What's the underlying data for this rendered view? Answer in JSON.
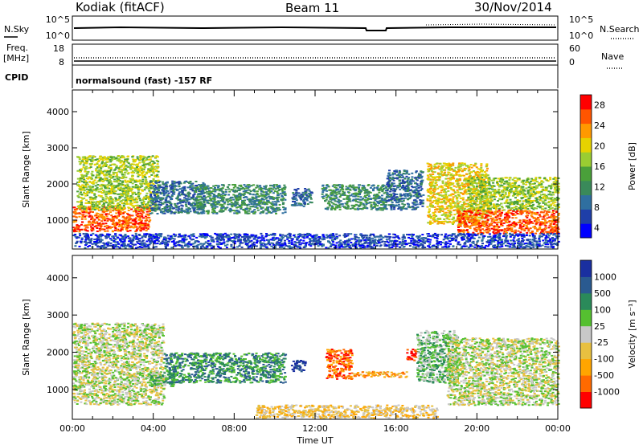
{
  "header": {
    "station": "Kodiak (fitACF)",
    "beam": "Beam 11",
    "date": "30/Nov/2014"
  },
  "top_panels": {
    "nsky_label": "N.Sky",
    "nsky_ticks": [
      "10^5",
      "10^0"
    ],
    "nsearch_label": "N.Search",
    "nsearch_ticks": [
      "10^5",
      "10^0"
    ],
    "freq_label": "Freq.",
    "freq_unit": "[MHz]",
    "freq_ticks": [
      "18",
      "8"
    ],
    "nave_label": "Nave",
    "nave_ticks": [
      "60",
      "0"
    ],
    "cpid_label": "CPID",
    "cpid_text": "normalsound (fast) -157 RF"
  },
  "x_axis": {
    "label": "Time UT",
    "ticks": [
      "00:00",
      "04:00",
      "08:00",
      "12:00",
      "16:00",
      "20:00",
      "00:00"
    ]
  },
  "colors": {
    "power": [
      "#0000ff",
      "#1f3fa8",
      "#2f6fa0",
      "#3a8a5a",
      "#4aa03a",
      "#9acd32",
      "#e6d200",
      "#ff9900",
      "#ff5500",
      "#ff0000"
    ],
    "velocity": [
      "#1a2fa0",
      "#2a5a90",
      "#2a8a5a",
      "#55c030",
      "#c8c8c8",
      "#e8c040",
      "#ffa500",
      "#ff6a00",
      "#ff0000"
    ]
  },
  "chart_data": [
    {
      "type": "heatmap",
      "title": "Power",
      "ylabel": "Slant Range [km]",
      "xlim": [
        0,
        24
      ],
      "ylim": [
        200,
        4600
      ],
      "yticks": [
        "1000",
        "2000",
        "3000",
        "4000"
      ],
      "colorbar_label": "Power [dB]",
      "colorbar_ticks": [
        "4",
        "8",
        "12",
        "16",
        "20",
        "24",
        "28"
      ],
      "regions": [
        {
          "t0": 0.0,
          "t1": 3.8,
          "r0": 700,
          "r1": 1400,
          "level": 8
        },
        {
          "t0": 0.2,
          "t1": 4.2,
          "r0": 1300,
          "r1": 2800,
          "level": 5
        },
        {
          "t0": 3.8,
          "t1": 6.5,
          "r0": 1200,
          "r1": 2100,
          "level": 2
        },
        {
          "t0": 6.0,
          "t1": 10.5,
          "r0": 1200,
          "r1": 2000,
          "level": 3
        },
        {
          "t0": 10.8,
          "t1": 11.8,
          "r0": 1400,
          "r1": 1900,
          "level": 2
        },
        {
          "t0": 12.3,
          "t1": 15.5,
          "r0": 1300,
          "r1": 2000,
          "level": 3
        },
        {
          "t0": 15.5,
          "t1": 17.3,
          "r0": 1300,
          "r1": 2400,
          "level": 2
        },
        {
          "t0": 17.5,
          "t1": 20.5,
          "r0": 900,
          "r1": 2600,
          "level": 6
        },
        {
          "t0": 19.0,
          "t1": 24.0,
          "r0": 650,
          "r1": 1300,
          "level": 8
        },
        {
          "t0": 19.5,
          "t1": 24.0,
          "r0": 1300,
          "r1": 2200,
          "level": 5
        },
        {
          "t0": 0.0,
          "t1": 24.0,
          "r0": 250,
          "r1": 650,
          "level": 1
        }
      ]
    },
    {
      "type": "heatmap",
      "title": "Velocity",
      "ylabel": "Slant Range [km]",
      "xlim": [
        0,
        24
      ],
      "ylim": [
        200,
        4600
      ],
      "yticks": [
        "1000",
        "2000",
        "3000",
        "4000"
      ],
      "colorbar_label": "Velocity [m s⁻¹]",
      "colorbar_ticks": [
        "1000",
        "500",
        "100",
        "25",
        "-25",
        "-100",
        "-500",
        "-1000"
      ],
      "regions": [
        {
          "t0": 0.0,
          "t1": 4.5,
          "r0": 600,
          "r1": 2800,
          "level": 4
        },
        {
          "t0": 3.8,
          "t1": 5.0,
          "r0": 1100,
          "r1": 1500,
          "level": 3
        },
        {
          "t0": 4.5,
          "t1": 10.5,
          "r0": 1200,
          "r1": 2000,
          "level": 2
        },
        {
          "t0": 10.8,
          "t1": 11.5,
          "r0": 1500,
          "r1": 1800,
          "level": 0
        },
        {
          "t0": 12.5,
          "t1": 13.8,
          "r0": 1300,
          "r1": 2100,
          "level": 7
        },
        {
          "t0": 13.8,
          "t1": 16.5,
          "r0": 1350,
          "r1": 1500,
          "level": 6
        },
        {
          "t0": 16.5,
          "t1": 17.0,
          "r0": 1800,
          "r1": 2100,
          "level": 8
        },
        {
          "t0": 17.0,
          "t1": 19.0,
          "r0": 1200,
          "r1": 2600,
          "level": 3
        },
        {
          "t0": 18.5,
          "t1": 24.0,
          "r0": 600,
          "r1": 2400,
          "level": 4
        },
        {
          "t0": 9.0,
          "t1": 18.0,
          "r0": 250,
          "r1": 600,
          "level": 5
        }
      ]
    }
  ]
}
